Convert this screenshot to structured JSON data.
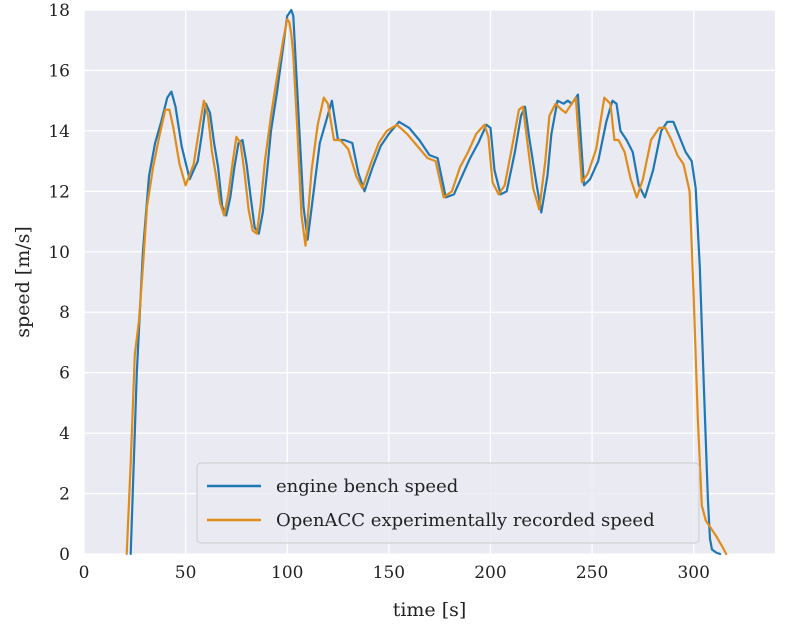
{
  "chart_data": {
    "type": "line",
    "title": "",
    "xlabel": "time [s]",
    "ylabel": "speed [m/s]",
    "xlim": [
      0,
      340
    ],
    "ylim": [
      0,
      18
    ],
    "x_ticks": [
      "0",
      "50",
      "100",
      "150",
      "200",
      "250",
      "300"
    ],
    "y_ticks": [
      "0",
      "2",
      "4",
      "6",
      "8",
      "10",
      "12",
      "14",
      "16",
      "18"
    ],
    "grid": true,
    "background_color": "#eaeaf2",
    "grid_color": "#ffffff",
    "legend_position": "lower-center",
    "series": [
      {
        "name": "engine bench speed",
        "color": "#1f77b4",
        "x": [
          23,
          26,
          29,
          32,
          35,
          38,
          41,
          43,
          45,
          48,
          52,
          56,
          58,
          60,
          62,
          64,
          66,
          68,
          70,
          72,
          74,
          76,
          78,
          80,
          82,
          84,
          86,
          88,
          90,
          92,
          95,
          98,
          100,
          102,
          103,
          104,
          106,
          108,
          110,
          113,
          116,
          119,
          122,
          125,
          128,
          132,
          135,
          138,
          142,
          146,
          150,
          155,
          160,
          165,
          170,
          174,
          178,
          182,
          186,
          190,
          194,
          198,
          200,
          202,
          205,
          208,
          212,
          215,
          217,
          219,
          222,
          225,
          228,
          230,
          233,
          236,
          238,
          240,
          243,
          246,
          249,
          253,
          257,
          260,
          262,
          264,
          267,
          270,
          273,
          276,
          280,
          284,
          287,
          290,
          293,
          296,
          299,
          301,
          303,
          305,
          307,
          308,
          309,
          311,
          313
        ],
        "y": [
          0,
          6,
          10,
          12.5,
          13.6,
          14.3,
          15.1,
          15.3,
          14.8,
          13.5,
          12.4,
          13.0,
          13.9,
          14.9,
          14.6,
          13.6,
          12.8,
          11.5,
          11.2,
          11.8,
          12.8,
          13.6,
          13.7,
          12.9,
          11.8,
          10.8,
          10.6,
          11.3,
          12.6,
          14.0,
          15.3,
          16.8,
          17.8,
          18.0,
          17.8,
          16.5,
          14.0,
          11.5,
          10.4,
          12.0,
          13.6,
          14.3,
          15.0,
          13.7,
          13.7,
          13.6,
          12.6,
          12.0,
          12.8,
          13.5,
          13.9,
          14.3,
          14.1,
          13.7,
          13.2,
          13.1,
          11.8,
          11.9,
          12.5,
          13.1,
          13.6,
          14.2,
          14.1,
          12.7,
          11.9,
          12.0,
          13.3,
          14.5,
          14.8,
          13.8,
          12.5,
          11.3,
          12.5,
          13.9,
          15.0,
          14.9,
          15.0,
          14.9,
          15.2,
          12.2,
          12.4,
          13.0,
          14.3,
          15.0,
          14.9,
          14.0,
          13.7,
          13.3,
          12.2,
          11.8,
          12.7,
          14.0,
          14.3,
          14.3,
          13.8,
          13.3,
          13.0,
          12.1,
          9.5,
          5.5,
          1.8,
          0.5,
          0.15,
          0.05,
          0.0
        ]
      },
      {
        "name": "OpenACC experimentally recorded speed",
        "color": "#e08c1a",
        "x": [
          21,
          23,
          25,
          27,
          29,
          31,
          34,
          37,
          40,
          42,
          44,
          47,
          50,
          54,
          57,
          59,
          61,
          63,
          65,
          67,
          69,
          71,
          73,
          75,
          77,
          79,
          81,
          83,
          85,
          87,
          89,
          92,
          95,
          98,
          100,
          101,
          102,
          103,
          105,
          107,
          109,
          112,
          115,
          118,
          120,
          123,
          126,
          130,
          134,
          137,
          141,
          145,
          149,
          154,
          159,
          164,
          169,
          173,
          177,
          181,
          185,
          189,
          193,
          197,
          199,
          201,
          204,
          207,
          211,
          214,
          216,
          218,
          221,
          224,
          227,
          229,
          232,
          235,
          237,
          239,
          242,
          245,
          248,
          252,
          256,
          259,
          261,
          263,
          266,
          269,
          272,
          275,
          279,
          283,
          286,
          289,
          292,
          295,
          298,
          300,
          302,
          304,
          306,
          307,
          308,
          309,
          311,
          314,
          316
        ],
        "y": [
          0,
          3,
          6.6,
          7.7,
          9.5,
          11.5,
          12.8,
          13.8,
          14.7,
          14.7,
          14.1,
          12.9,
          12.2,
          12.9,
          14.2,
          15.0,
          14.5,
          13.3,
          12.5,
          11.6,
          11.2,
          11.9,
          12.9,
          13.8,
          13.6,
          12.6,
          11.4,
          10.7,
          10.6,
          11.6,
          13.0,
          14.5,
          15.8,
          17.0,
          17.7,
          17.6,
          17.2,
          16.5,
          14.0,
          11.2,
          10.2,
          12.7,
          14.2,
          15.1,
          14.9,
          13.7,
          13.7,
          13.4,
          12.5,
          12.1,
          12.9,
          13.6,
          14.0,
          14.2,
          13.9,
          13.5,
          13.1,
          13.0,
          11.8,
          12.0,
          12.8,
          13.3,
          13.9,
          14.2,
          13.8,
          12.3,
          11.9,
          12.2,
          13.6,
          14.7,
          14.8,
          13.7,
          12.1,
          11.4,
          13.0,
          14.5,
          14.9,
          14.7,
          14.6,
          14.8,
          15.1,
          12.3,
          12.6,
          13.4,
          15.1,
          14.9,
          13.7,
          13.7,
          13.3,
          12.4,
          11.8,
          12.4,
          13.7,
          14.1,
          14.1,
          13.7,
          13.2,
          12.9,
          12.0,
          8.5,
          4.5,
          1.6,
          1.1,
          1.0,
          0.9,
          0.8,
          0.6,
          0.25,
          0.0
        ]
      }
    ]
  }
}
